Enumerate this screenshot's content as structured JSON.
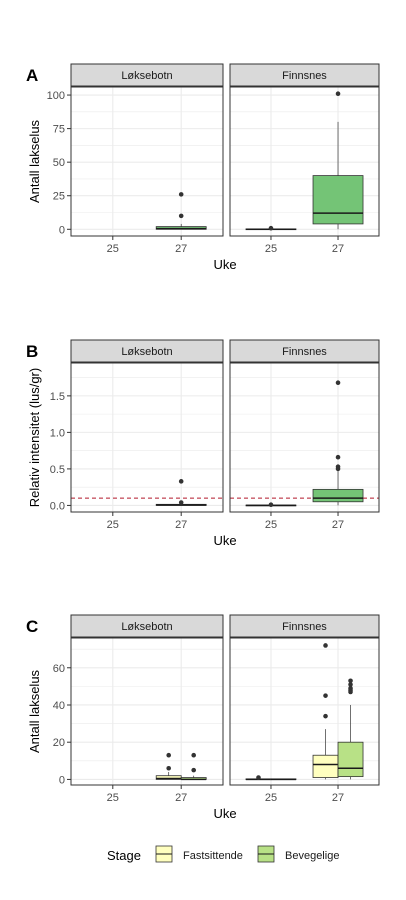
{
  "chart_data": [
    {
      "type": "boxplot",
      "panel_label": "A",
      "xlabel": "Uke",
      "ylabel": "Antall lakselus",
      "ylim": [
        -5,
        106
      ],
      "yticks": [
        0,
        25,
        50,
        75,
        100
      ],
      "ytick_labels": [
        "0",
        "25",
        "50",
        "75",
        "100"
      ],
      "x_categories": [
        "25",
        "27"
      ],
      "facets": [
        "Løksebotn",
        "Finnsnes"
      ],
      "grid": true,
      "boxes": [
        {
          "facet": "Løksebotn",
          "x": "27",
          "q1": 0,
          "median": 0.5,
          "q3": 2,
          "whisker_low": 0,
          "whisker_high": 4,
          "outliers": [
            10,
            26
          ],
          "color": "#74c476"
        },
        {
          "facet": "Finnsnes",
          "x": "25",
          "q1": 0,
          "median": 0,
          "q3": 0.3,
          "whisker_low": 0,
          "whisker_high": 0.3,
          "outliers": [
            0.8
          ],
          "color": "#74c476"
        },
        {
          "facet": "Finnsnes",
          "x": "27",
          "q1": 4,
          "median": 12,
          "q3": 40,
          "whisker_low": 0,
          "whisker_high": 80,
          "outliers": [
            101
          ],
          "color": "#74c476"
        }
      ]
    },
    {
      "type": "boxplot",
      "panel_label": "B",
      "xlabel": "Uke",
      "ylabel": "Relativ intensitet (lus/gr)",
      "ylim": [
        -0.09,
        1.95
      ],
      "yticks": [
        0,
        0.5,
        1.0,
        1.5
      ],
      "ytick_labels": [
        "0.0",
        "0.5",
        "1.0",
        "1.5"
      ],
      "x_categories": [
        "25",
        "27"
      ],
      "facets": [
        "Løksebotn",
        "Finnsnes"
      ],
      "grid": true,
      "reference_line": {
        "y": 0.1,
        "color": "#b2182b",
        "style": "dashed"
      },
      "boxes": [
        {
          "facet": "Løksebotn",
          "x": "27",
          "q1": 0,
          "median": 0.005,
          "q3": 0.015,
          "whisker_low": 0,
          "whisker_high": 0.02,
          "outliers": [
            0.04,
            0.33
          ],
          "color": "#74c476"
        },
        {
          "facet": "Finnsnes",
          "x": "25",
          "q1": 0,
          "median": 0,
          "q3": 0.005,
          "whisker_low": 0,
          "whisker_high": 0.005,
          "outliers": [
            0.01
          ],
          "color": "#74c476"
        },
        {
          "facet": "Finnsnes",
          "x": "27",
          "q1": 0.05,
          "median": 0.1,
          "q3": 0.22,
          "whisker_low": 0,
          "whisker_high": 0.47,
          "outliers": [
            0.5,
            0.53,
            0.66,
            1.68
          ],
          "color": "#74c476"
        }
      ]
    },
    {
      "type": "boxplot",
      "panel_label": "C",
      "xlabel": "Uke",
      "ylabel": "Antall lakselus",
      "ylim": [
        -3,
        76
      ],
      "yticks": [
        0,
        20,
        40,
        60
      ],
      "ytick_labels": [
        "0",
        "20",
        "40",
        "60"
      ],
      "x_categories": [
        "25",
        "27"
      ],
      "facets": [
        "Løksebotn",
        "Finnsnes"
      ],
      "grid": true,
      "legend": {
        "title": "Stage",
        "position": "bottom",
        "items": [
          {
            "label": "Fastsittende",
            "color": "#ffffbf"
          },
          {
            "label": "Bevegelige",
            "color": "#b8e186"
          }
        ]
      },
      "boxes": [
        {
          "facet": "Løksebotn",
          "x": "27",
          "group": "Fastsittende",
          "q1": 0,
          "median": 0.5,
          "q3": 2,
          "whisker_low": 0,
          "whisker_high": 4,
          "outliers": [
            6,
            13
          ],
          "color": "#ffffbf"
        },
        {
          "facet": "Løksebotn",
          "x": "27",
          "group": "Bevegelige",
          "q1": 0,
          "median": 0,
          "q3": 1,
          "whisker_low": 0,
          "whisker_high": 2,
          "outliers": [
            5,
            13
          ],
          "color": "#b8e186"
        },
        {
          "facet": "Finnsnes",
          "x": "25",
          "group": "Fastsittende",
          "q1": 0,
          "median": 0,
          "q3": 0.3,
          "whisker_low": 0,
          "whisker_high": 0.3,
          "outliers": [
            1
          ],
          "color": "#ffffbf"
        },
        {
          "facet": "Finnsnes",
          "x": "25",
          "group": "Bevegelige",
          "q1": 0,
          "median": 0,
          "q3": 0.3,
          "whisker_low": 0,
          "whisker_high": 0.3,
          "outliers": [],
          "color": "#b8e186"
        },
        {
          "facet": "Finnsnes",
          "x": "27",
          "group": "Fastsittende",
          "q1": 1,
          "median": 8,
          "q3": 13,
          "whisker_low": 0,
          "whisker_high": 27,
          "outliers": [
            34,
            45,
            72
          ],
          "color": "#ffffbf"
        },
        {
          "facet": "Finnsnes",
          "x": "27",
          "group": "Bevegelige",
          "q1": 1.5,
          "median": 6,
          "q3": 20,
          "whisker_low": 0,
          "whisker_high": 40,
          "outliers": [
            47,
            48,
            49,
            51,
            53
          ],
          "color": "#b8e186"
        }
      ]
    }
  ]
}
